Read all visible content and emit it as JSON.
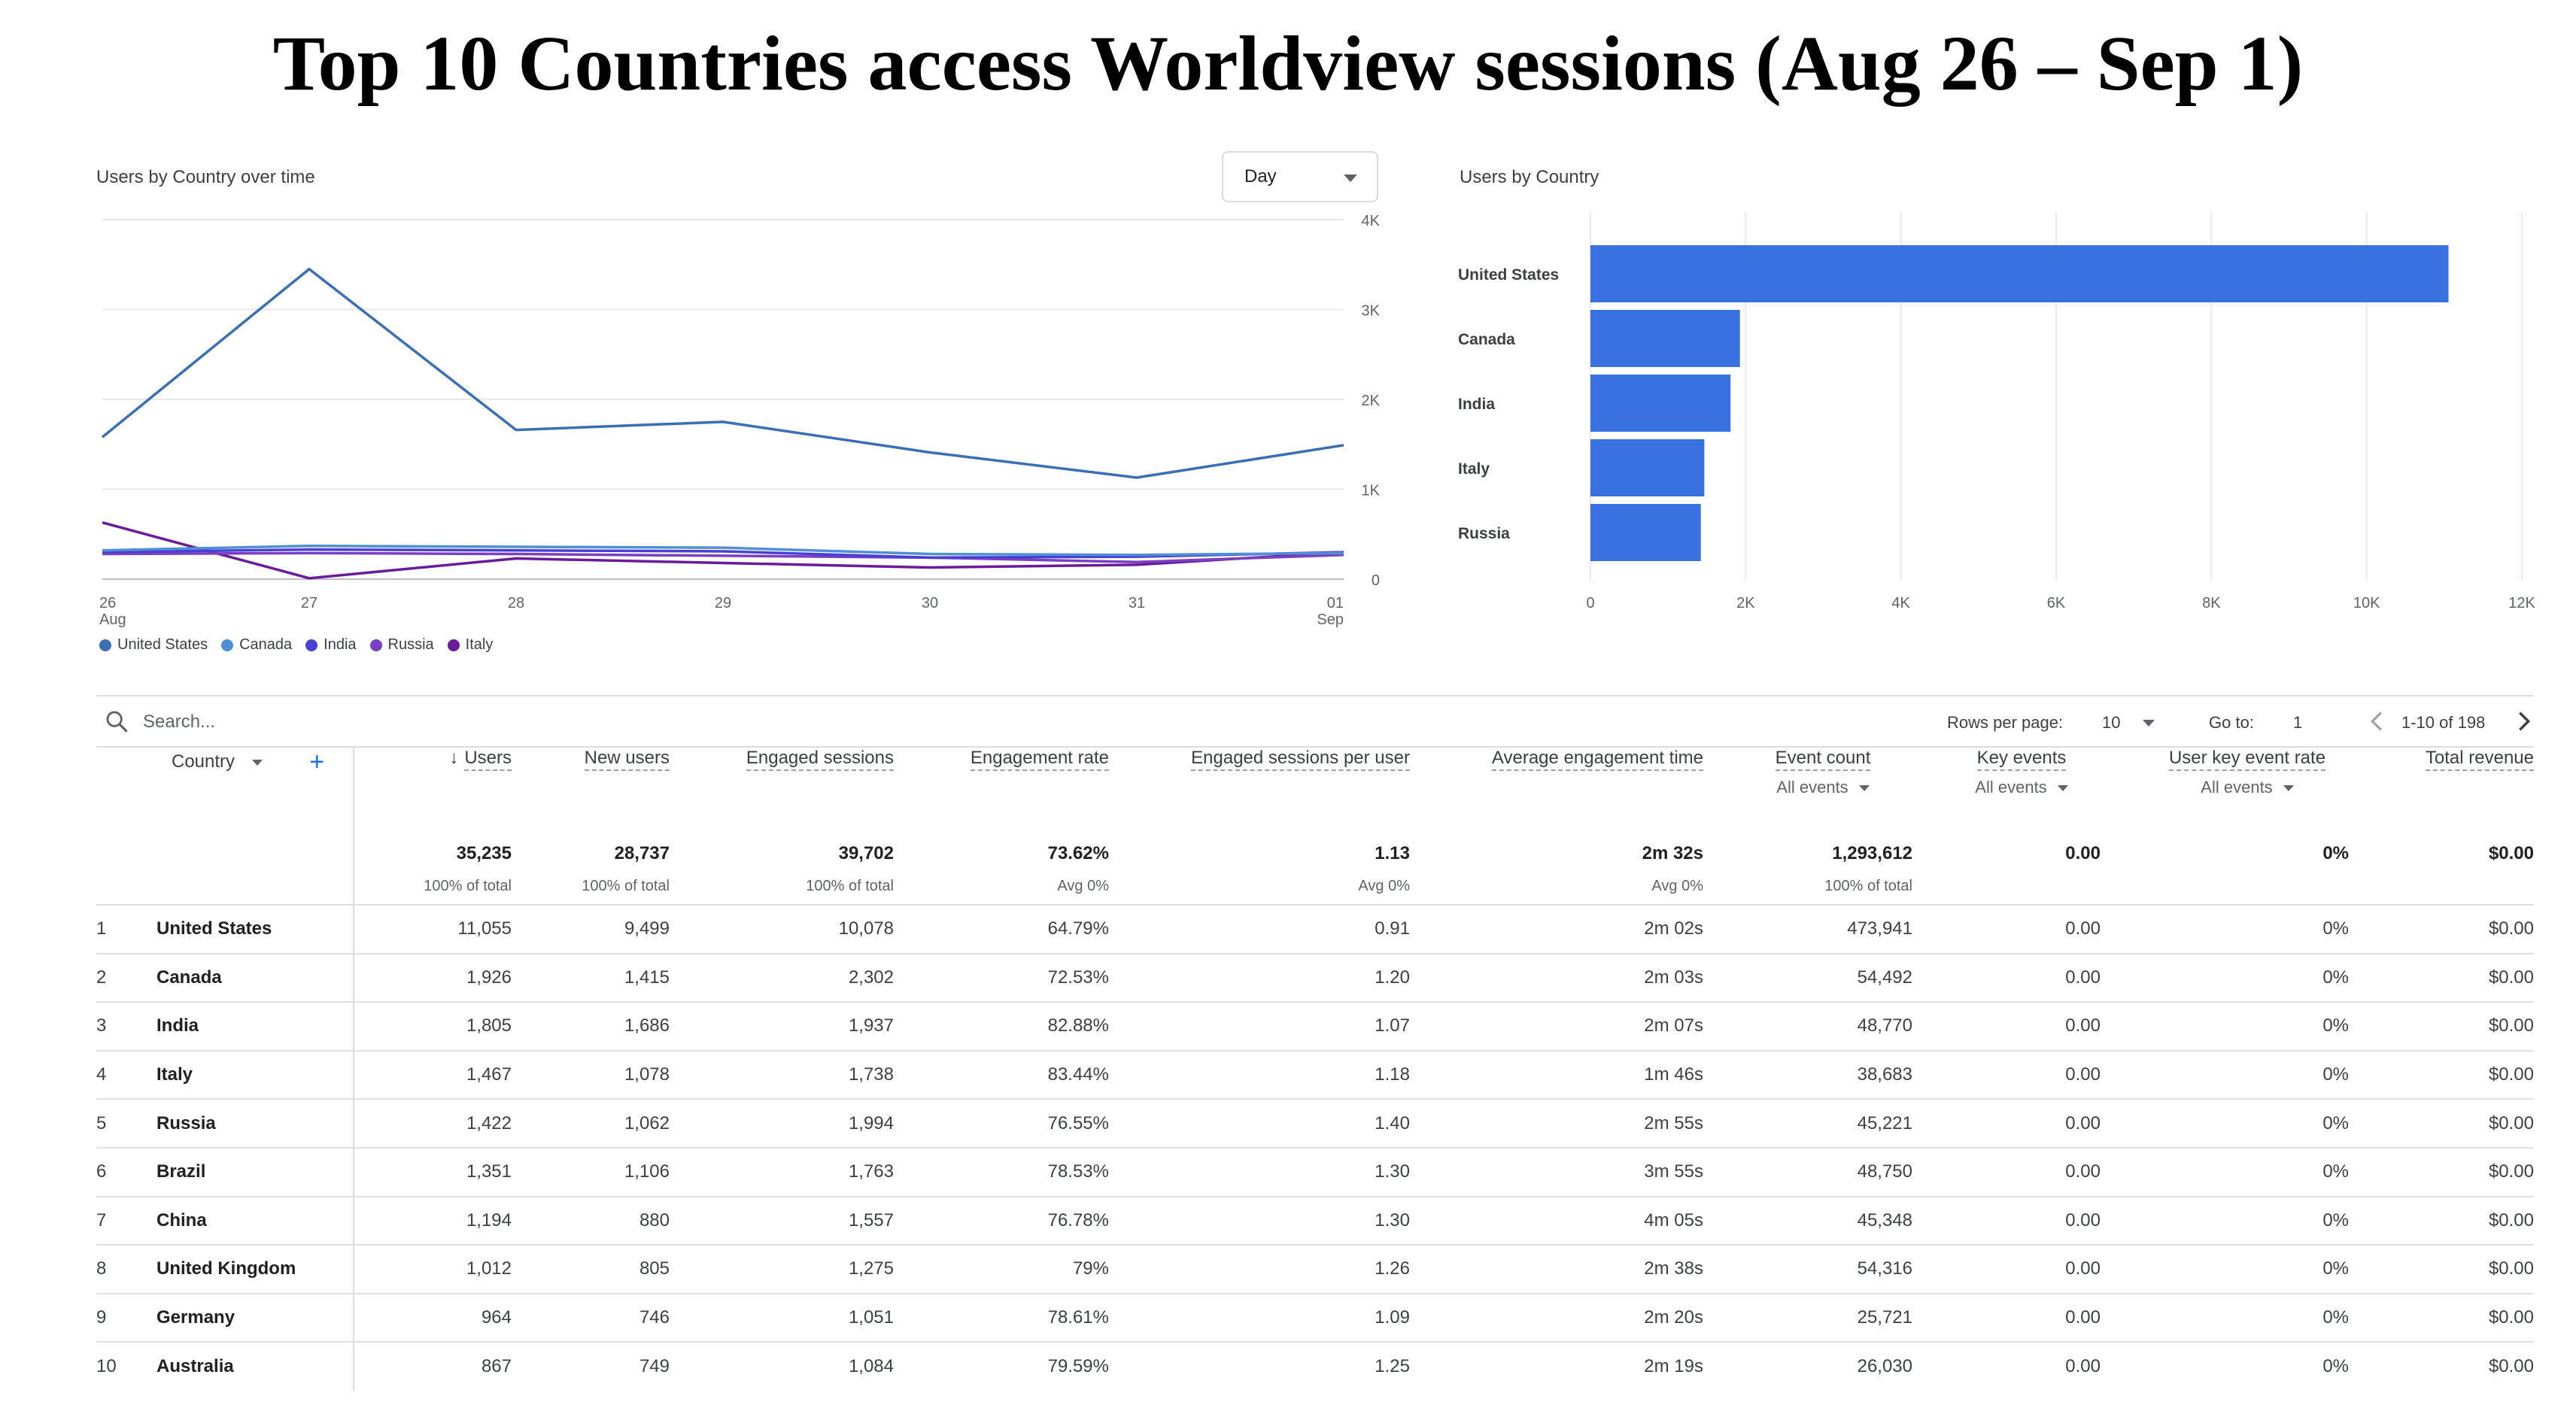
{
  "page_title": "Top 10 Countries access Worldview sessions (Aug 26 – Sep 1)",
  "line_card": {
    "title": "Users by Country over time",
    "granularity": "Day",
    "y_ticks": [
      "4K",
      "3K",
      "2K",
      "1K",
      "0"
    ],
    "x_ticks": [
      {
        "day": "26",
        "month": "Aug"
      },
      {
        "day": "27",
        "month": ""
      },
      {
        "day": "28",
        "month": ""
      },
      {
        "day": "29",
        "month": ""
      },
      {
        "day": "30",
        "month": ""
      },
      {
        "day": "31",
        "month": ""
      },
      {
        "day": "01",
        "month": "Sep"
      }
    ],
    "legend": [
      "United States",
      "Canada",
      "India",
      "Russia",
      "Italy"
    ]
  },
  "bar_card": {
    "title": "Users by Country",
    "x_ticks": [
      "0",
      "2K",
      "4K",
      "6K",
      "8K",
      "10K",
      "12K"
    ]
  },
  "chart_data": [
    {
      "type": "line",
      "title": "Users by Country over time",
      "x": [
        "26 Aug",
        "27",
        "28",
        "29",
        "30",
        "31",
        "01 Sep"
      ],
      "ylim": [
        0,
        4000
      ],
      "series": [
        {
          "name": "United States",
          "color": "#3a6fb5",
          "values": [
            1580,
            3450,
            1660,
            1750,
            1410,
            1130,
            1490
          ]
        },
        {
          "name": "Canada",
          "color": "#4f8fd6",
          "values": [
            320,
            370,
            360,
            350,
            280,
            270,
            290
          ]
        },
        {
          "name": "India",
          "color": "#4a3fd4",
          "values": [
            300,
            330,
            320,
            310,
            240,
            250,
            300
          ]
        },
        {
          "name": "Russia",
          "color": "#7b3fc4",
          "values": [
            280,
            290,
            280,
            260,
            240,
            190,
            270
          ]
        },
        {
          "name": "Italy",
          "color": "#6a1b9a",
          "values": [
            630,
            10,
            230,
            180,
            130,
            160,
            300
          ]
        }
      ],
      "grid": true,
      "legend_position": "bottom-left"
    },
    {
      "type": "bar",
      "orientation": "horizontal",
      "title": "Users by Country",
      "categories": [
        "United States",
        "Canada",
        "India",
        "Italy",
        "Russia"
      ],
      "values": [
        11055,
        1926,
        1805,
        1467,
        1422
      ],
      "xlim": [
        0,
        12000
      ],
      "color": "#3a71e0",
      "grid": true
    }
  ],
  "search": {
    "placeholder": "Search..."
  },
  "pager": {
    "rows_per_page_label": "Rows per page:",
    "rows_per_page_value": "10",
    "goto_label": "Go to:",
    "goto_value": "1",
    "range_text": "1-10 of 198"
  },
  "table": {
    "dimension_label": "Country",
    "columns": [
      {
        "label": "Users",
        "sub": ""
      },
      {
        "label": "New users",
        "sub": ""
      },
      {
        "label": "Engaged sessions",
        "sub": ""
      },
      {
        "label": "Engagement rate",
        "sub": ""
      },
      {
        "label": "Engaged sessions per user",
        "sub": ""
      },
      {
        "label": "Average engagement time",
        "sub": ""
      },
      {
        "label": "Event count",
        "sub": "All events"
      },
      {
        "label": "Key events",
        "sub": "All events"
      },
      {
        "label": "User key event rate",
        "sub": "All events"
      },
      {
        "label": "Total revenue",
        "sub": ""
      }
    ],
    "totals": [
      {
        "value": "35,235",
        "sub": "100% of total"
      },
      {
        "value": "28,737",
        "sub": "100% of total"
      },
      {
        "value": "39,702",
        "sub": "100% of total"
      },
      {
        "value": "73.62%",
        "sub": "Avg 0%"
      },
      {
        "value": "1.13",
        "sub": "Avg 0%"
      },
      {
        "value": "2m 32s",
        "sub": "Avg 0%"
      },
      {
        "value": "1,293,612",
        "sub": "100% of total"
      },
      {
        "value": "0.00",
        "sub": ""
      },
      {
        "value": "0%",
        "sub": ""
      },
      {
        "value": "$0.00",
        "sub": ""
      }
    ],
    "rows": [
      [
        "1",
        "United States",
        "11,055",
        "9,499",
        "10,078",
        "64.79%",
        "0.91",
        "2m 02s",
        "473,941",
        "0.00",
        "0%",
        "$0.00"
      ],
      [
        "2",
        "Canada",
        "1,926",
        "1,415",
        "2,302",
        "72.53%",
        "1.20",
        "2m 03s",
        "54,492",
        "0.00",
        "0%",
        "$0.00"
      ],
      [
        "3",
        "India",
        "1,805",
        "1,686",
        "1,937",
        "82.88%",
        "1.07",
        "2m 07s",
        "48,770",
        "0.00",
        "0%",
        "$0.00"
      ],
      [
        "4",
        "Italy",
        "1,467",
        "1,078",
        "1,738",
        "83.44%",
        "1.18",
        "1m 46s",
        "38,683",
        "0.00",
        "0%",
        "$0.00"
      ],
      [
        "5",
        "Russia",
        "1,422",
        "1,062",
        "1,994",
        "76.55%",
        "1.40",
        "2m 55s",
        "45,221",
        "0.00",
        "0%",
        "$0.00"
      ],
      [
        "6",
        "Brazil",
        "1,351",
        "1,106",
        "1,763",
        "78.53%",
        "1.30",
        "3m 55s",
        "48,750",
        "0.00",
        "0%",
        "$0.00"
      ],
      [
        "7",
        "China",
        "1,194",
        "880",
        "1,557",
        "76.78%",
        "1.30",
        "4m 05s",
        "45,348",
        "0.00",
        "0%",
        "$0.00"
      ],
      [
        "8",
        "United Kingdom",
        "1,012",
        "805",
        "1,275",
        "79%",
        "1.26",
        "2m 38s",
        "54,316",
        "0.00",
        "0%",
        "$0.00"
      ],
      [
        "9",
        "Germany",
        "964",
        "746",
        "1,051",
        "78.61%",
        "1.09",
        "2m 20s",
        "25,721",
        "0.00",
        "0%",
        "$0.00"
      ],
      [
        "10",
        "Australia",
        "867",
        "749",
        "1,084",
        "79.59%",
        "1.25",
        "2m 19s",
        "26,030",
        "0.00",
        "0%",
        "$0.00"
      ]
    ]
  }
}
